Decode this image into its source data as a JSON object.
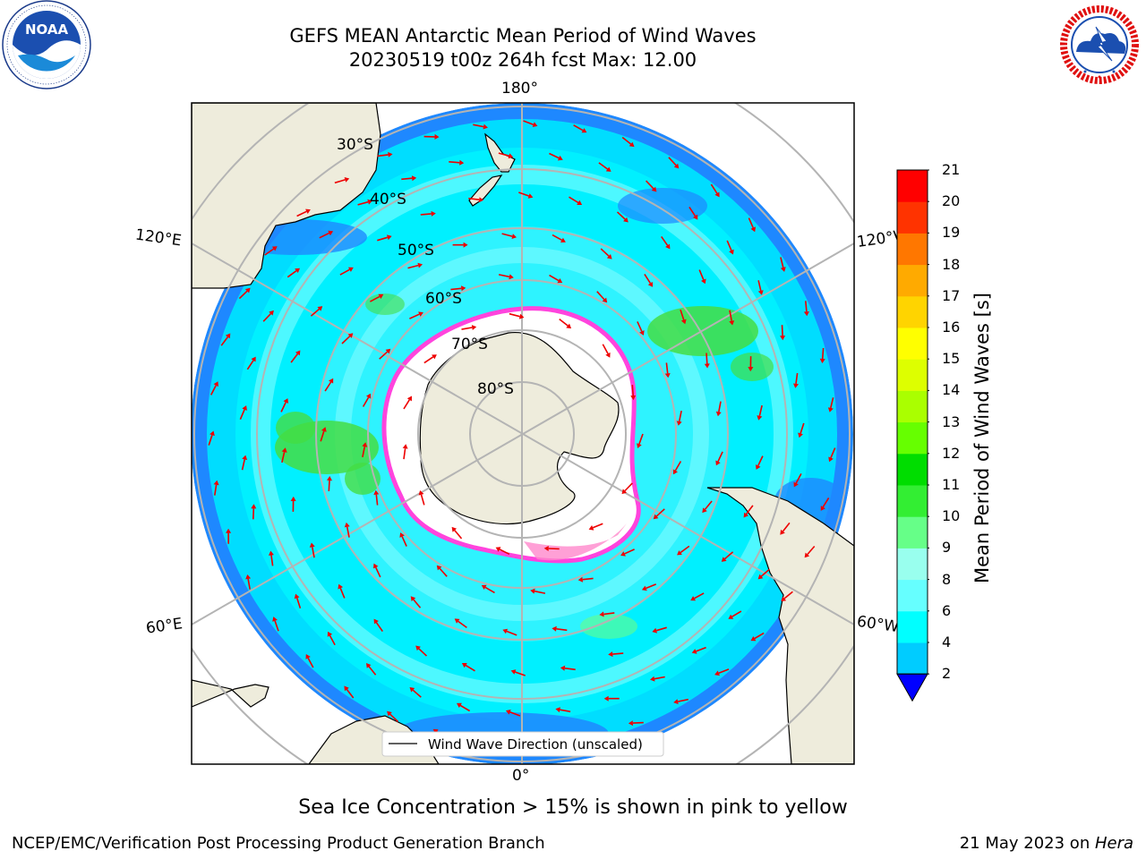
{
  "header": {
    "title_line1": "GEFS MEAN Antarctic Mean Period of Wind Waves",
    "title_line2": "20230519 t00z 264h fcst   Max: 12.00"
  },
  "logos": {
    "left": "noaa-logo",
    "left_text": "NOAA",
    "left_ring_text": "NATIONAL OCEANIC AND ATMOSPHERIC ADMINISTRATION · U.S. DEPARTMENT OF COMMERCE",
    "right": "nws-logo",
    "right_ring_text": "NATIONAL WEATHER SERVICE"
  },
  "map": {
    "projection": "south-polar-stereographic",
    "lon_labels": {
      "top": "180°",
      "bottom": "0°",
      "left_upper": "120°E",
      "left_lower": "60°E",
      "right_upper": "120°W",
      "right_lower": "60°W"
    },
    "lat_labels": [
      "30°S",
      "40°S",
      "50°S",
      "60°S",
      "70°S",
      "80°S"
    ],
    "legend_label": "Wind Wave Direction (unscaled)",
    "colors": {
      "land": "#eeecdc",
      "ocean_dominant": "#00f0ff",
      "ocean_light": "#99ffff",
      "ocean_deep": "#1e88ff",
      "ice": "#ffffff",
      "ice_edge": "#ff44dd",
      "arrows": "#ee0000"
    }
  },
  "colorbar": {
    "title": "Mean Period of Wind Waves [s]",
    "ticks": [
      "2",
      "4",
      "6",
      "8",
      "9",
      "10",
      "11",
      "12",
      "13",
      "14",
      "15",
      "16",
      "17",
      "18",
      "19",
      "20",
      "21"
    ],
    "colors": [
      "#0066ff",
      "#00ccff",
      "#00ffff",
      "#66ffff",
      "#99ffee",
      "#66ff88",
      "#33ee33",
      "#00dd00",
      "#66ff00",
      "#aaff00",
      "#ddff00",
      "#ffff00",
      "#ffd400",
      "#ffaa00",
      "#ff7700",
      "#ff3300",
      "#ff0000"
    ],
    "under_color": "#0000ff"
  },
  "footer": {
    "note": "Sea Ice Concentration > 15% is shown in pink to yellow",
    "credit_left": "NCEP/EMC/Verification Post Processing Product Generation Branch",
    "credit_right_prefix": "21 May 2023 on ",
    "credit_right_host": "Hera"
  }
}
